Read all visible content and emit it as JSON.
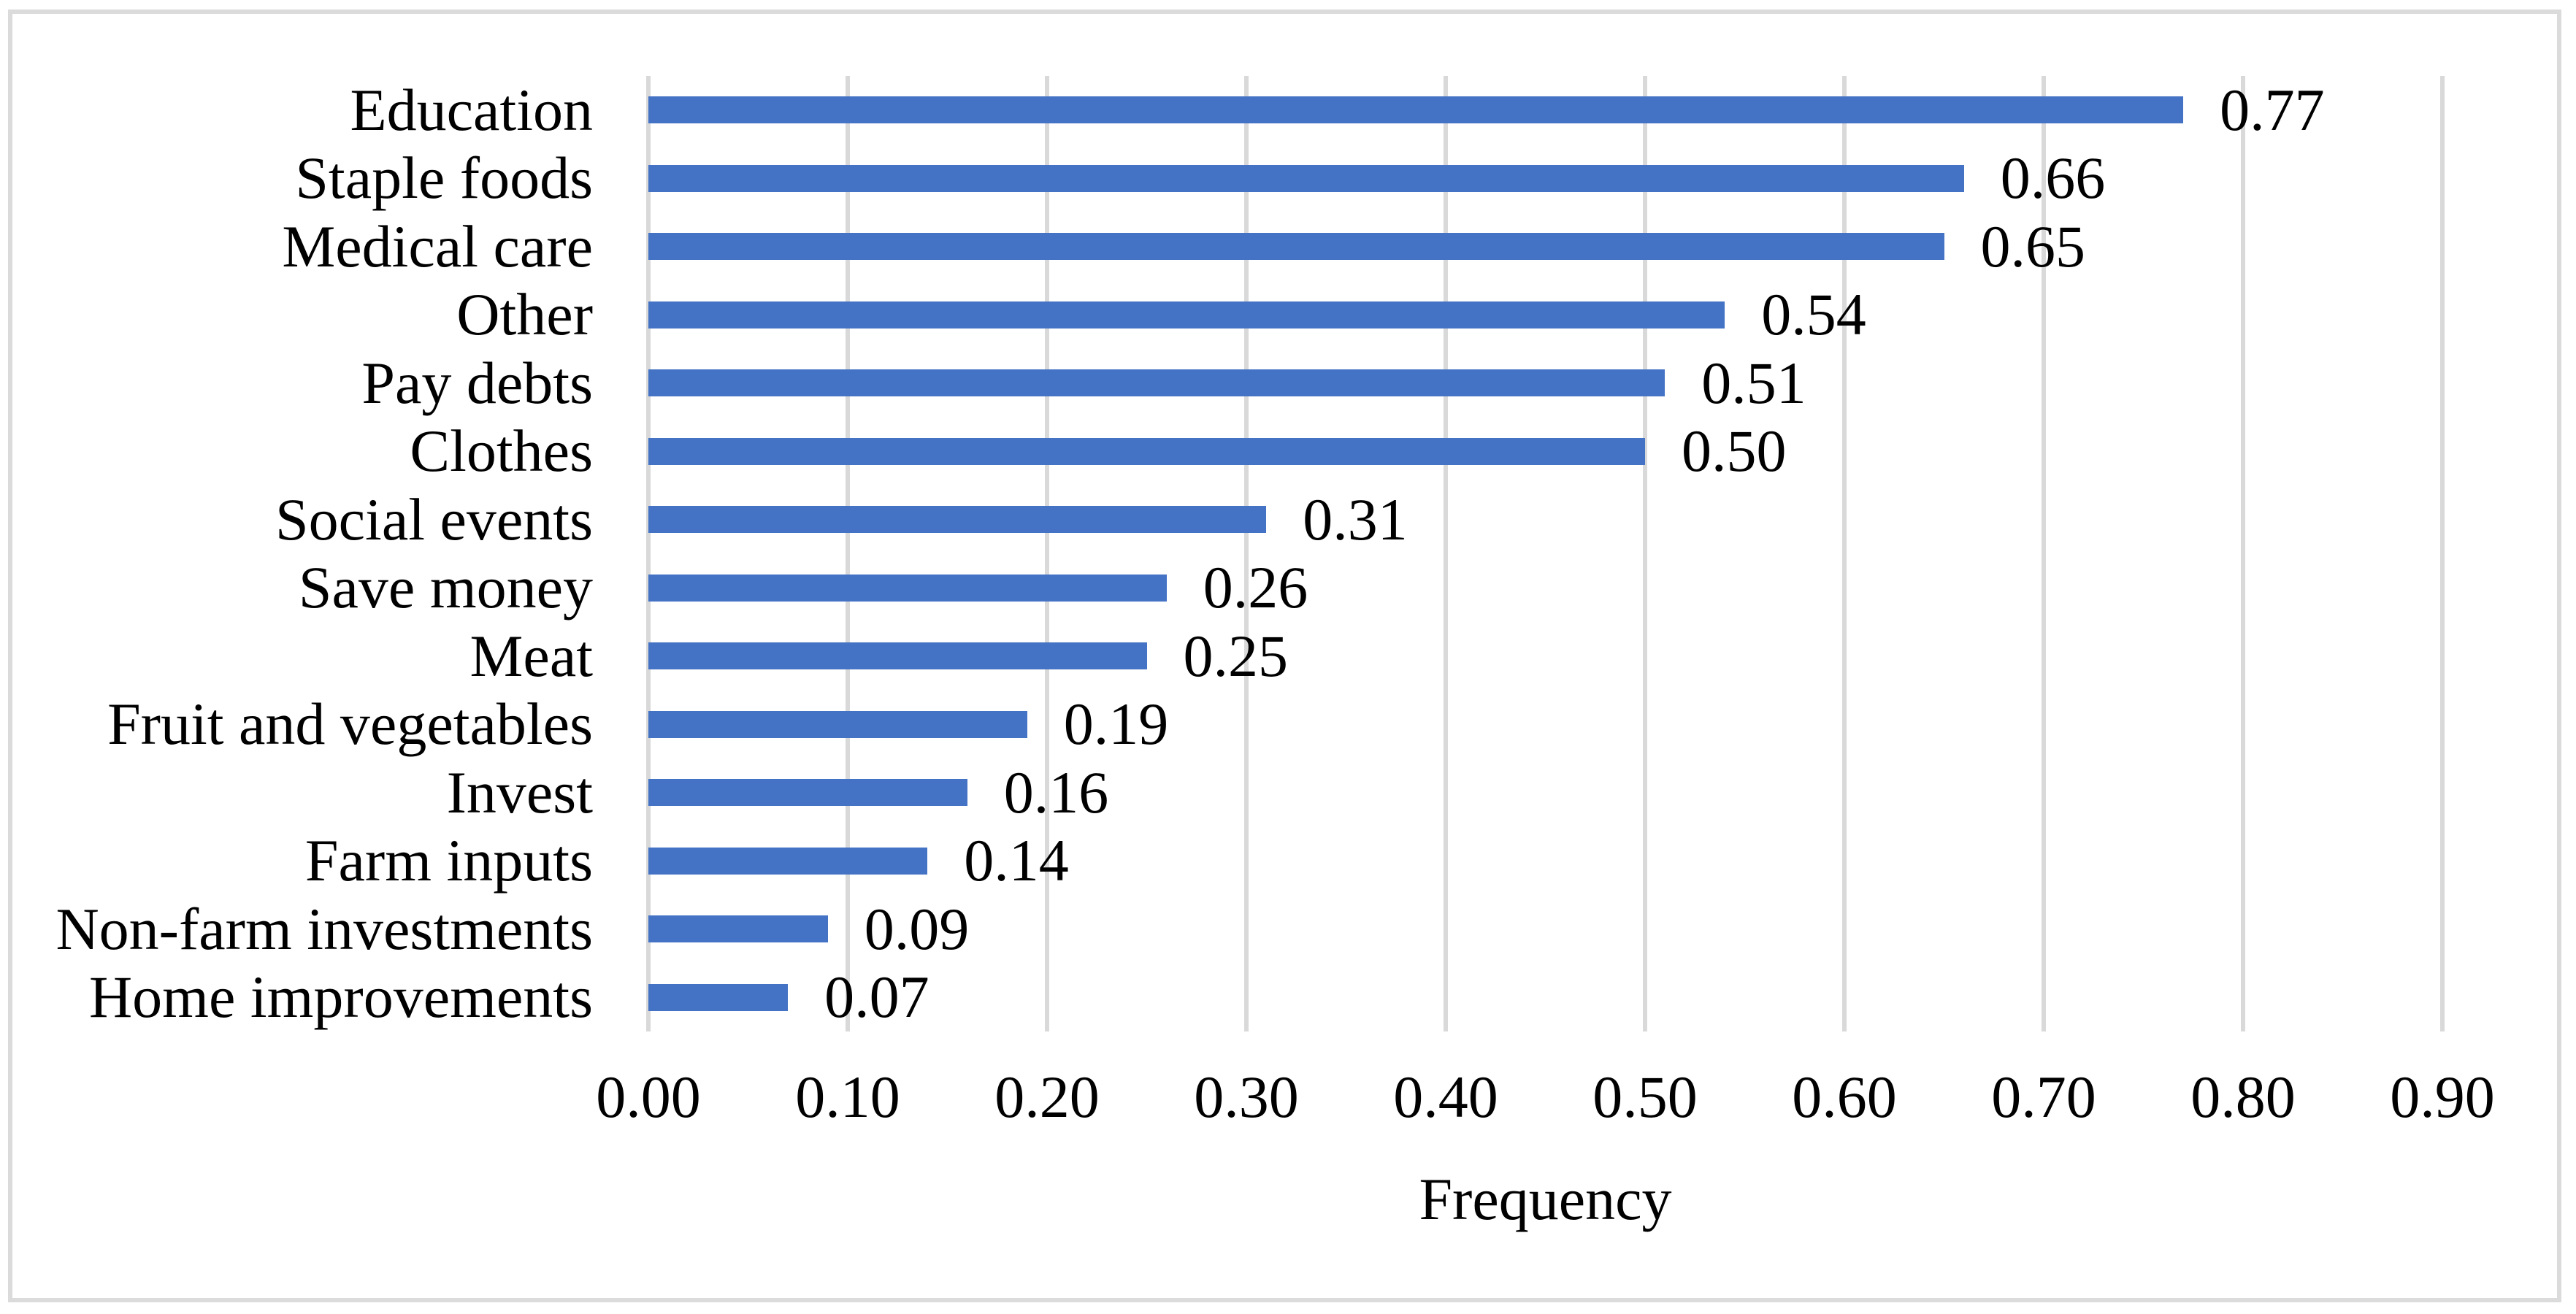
{
  "figure": {
    "background_color": "#FFFFFF",
    "border_color": "#DBDBDB"
  },
  "chart_data": {
    "type": "bar",
    "orientation": "horizontal",
    "title": "",
    "xlabel": "Frequency",
    "ylabel": "",
    "categories": [
      "Education",
      "Staple foods",
      "Medical care",
      "Other",
      "Pay debts",
      "Clothes",
      "Social events",
      "Save money",
      "Meat",
      "Fruit and vegetables",
      "Invest",
      "Farm inputs",
      "Non-farm investments",
      "Home improvements"
    ],
    "values": [
      0.77,
      0.66,
      0.65,
      0.54,
      0.51,
      0.5,
      0.31,
      0.26,
      0.25,
      0.19,
      0.16,
      0.14,
      0.09,
      0.07
    ],
    "data_labels": [
      "0.77",
      "0.66",
      "0.65",
      "0.54",
      "0.51",
      "0.50",
      "0.31",
      "0.26",
      "0.25",
      "0.19",
      "0.16",
      "0.14",
      "0.09",
      "0.07"
    ],
    "xlim": [
      0,
      0.9
    ],
    "x_tick_labels": [
      "0.00",
      "0.10",
      "0.20",
      "0.30",
      "0.40",
      "0.50",
      "0.60",
      "0.70",
      "0.80",
      "0.90"
    ],
    "grid": true,
    "legend": "none",
    "bar_color": "#4472C4",
    "gridline_color": "#D9D9D9",
    "text_color": "#000000"
  }
}
